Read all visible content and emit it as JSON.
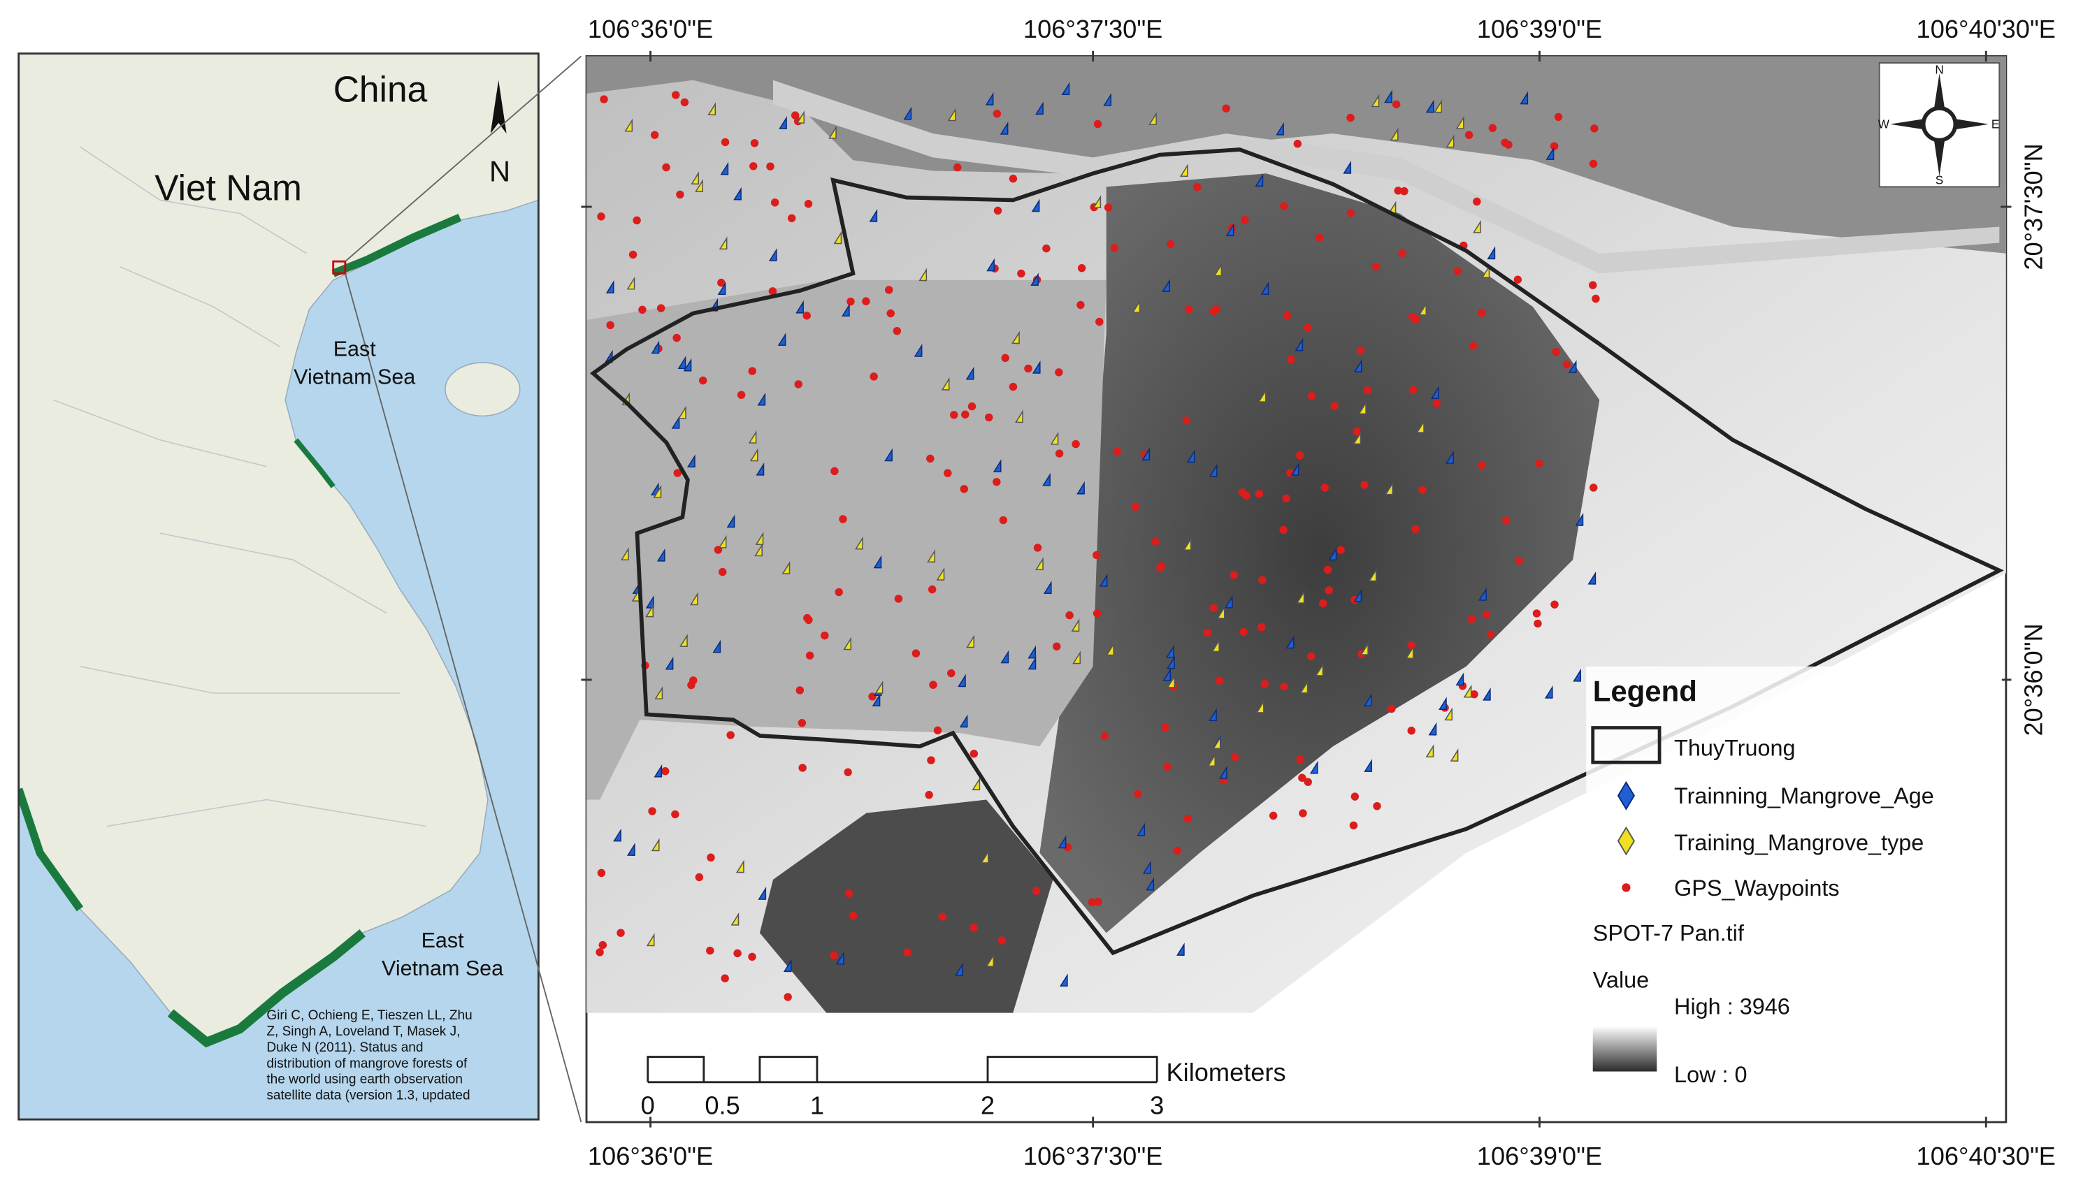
{
  "inset": {
    "country_north": "China",
    "country_main": "Viet Nam",
    "sea_upper": [
      "East",
      "Vietnam Sea"
    ],
    "sea_lower": [
      "East",
      "Vietnam Sea"
    ],
    "north_arrow": "N",
    "citation": [
      "Giri C, Ochieng E, Tieszen LL, Zhu",
      "Z, Singh A, Loveland T, Masek J,",
      "Duke N (2011). Status and",
      "distribution of mangrove forests of",
      "the world using earth observation",
      "satellite data (version 1.3, updated"
    ]
  },
  "main_map": {
    "top_coords": [
      "106°36'0\"E",
      "106°37'30\"E",
      "106°39'0\"E",
      "106°40'30\"E"
    ],
    "bottom_coords": [
      "106°36'0\"E",
      "106°37'30\"E",
      "106°39'0\"E",
      "106°40'30\"E"
    ],
    "right_coords": [
      "20°37'30\"N",
      "20°36'0\"N"
    ],
    "compass": {
      "n": "N",
      "s": "S",
      "e": "E",
      "w": "W"
    },
    "scale_bar": {
      "labels": [
        "0",
        "0.5",
        "1",
        "2",
        "3"
      ],
      "unit": "Kilometers"
    }
  },
  "legend": {
    "title": "Legend",
    "items": [
      "ThuyTruong",
      "Trainning_Mangrove_Age",
      "Training_Mangrove_type",
      "GPS_Waypoints"
    ],
    "raster_name": "SPOT-7 Pan.tif",
    "value_heading": "Value",
    "high": "High : 3946",
    "low": "Low : 0"
  }
}
